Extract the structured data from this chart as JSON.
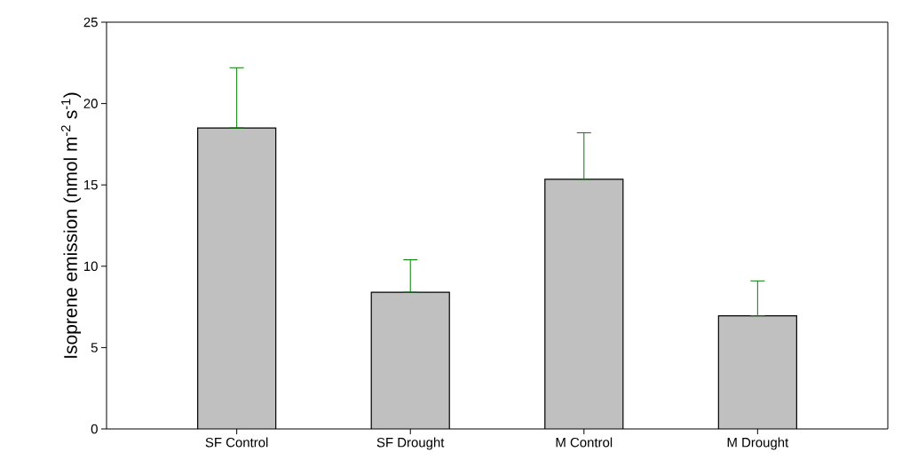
{
  "chart_data": {
    "type": "bar",
    "ylabel": "Isoprene emission (nmol m$^{-2}$ s$^{-1}$)",
    "categories": [
      "SF Control",
      "SF Drought",
      "M Control",
      "M Drought"
    ],
    "values": [
      18.5,
      8.4,
      15.35,
      6.95
    ],
    "errors": [
      [
        18.5,
        22.2
      ],
      [
        8.4,
        10.4
      ],
      [
        15.35,
        18.2
      ],
      [
        6.95,
        9.1
      ]
    ],
    "color": "#c0c0c0",
    "ylim": [
      0,
      25
    ],
    "yticks": [
      0,
      5,
      10,
      15,
      20,
      25
    ]
  }
}
